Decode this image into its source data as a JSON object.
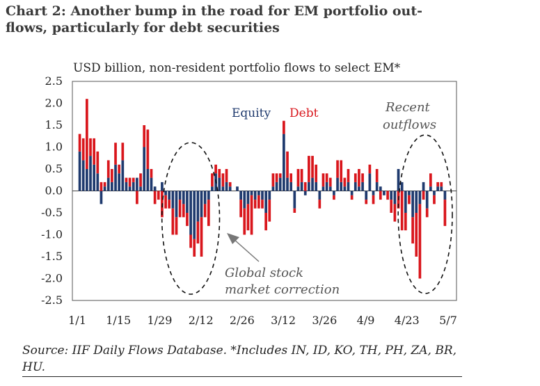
{
  "title": "Chart 2: Another bump in the road for EM portfolio out- flows, particularly for debt securities",
  "title_lines": [
    "Chart 2: Another bump in the road for EM portfolio out-",
    "flows, particularly for debt securities"
  ],
  "source": "Source: IIF Daily Flows Database. *Includes IN, ID, KO, TH, PH, ZA, BR, HU.",
  "colors": {
    "equity": "#1f3a6e",
    "debt": "#d9161c",
    "axis": "#333333",
    "annotation": "#555555"
  },
  "chart_data": {
    "type": "bar",
    "stacked": true,
    "subtitle": "USD billion, non-resident portfolio flows to select EM*",
    "ylim": [
      -2.5,
      2.5
    ],
    "y_ticks": [
      "2.5",
      "2.0",
      "1.5",
      "1.0",
      "0.5",
      "0.0",
      "-0.5",
      "-1.0",
      "-1.5",
      "-2.0",
      "-2.5"
    ],
    "x_ticks": [
      "1/1",
      "1/15",
      "1/29",
      "2/12",
      "2/26",
      "3/12",
      "3/26",
      "4/9",
      "4/23",
      "5/7"
    ],
    "legend": [
      "Equity",
      "Debt"
    ],
    "annotations": [
      "Recent",
      "outflows",
      "Global stock",
      "market correction"
    ],
    "series": [
      {
        "name": "Equity",
        "values": [
          0.9,
          0.7,
          0.5,
          0.8,
          0.6,
          0.4,
          -0.3,
          0.1,
          0.3,
          0.2,
          0.6,
          0.4,
          0.7,
          0.2,
          0.1,
          0.2,
          0.3,
          0.1,
          1.0,
          0.5,
          0.3,
          0.1,
          0.0,
          0.2,
          -0.1,
          -0.2,
          -0.4,
          -0.6,
          -0.2,
          -0.3,
          -0.5,
          -1.0,
          -1.1,
          -0.7,
          -0.6,
          -0.3,
          -0.2,
          0.1,
          0.4,
          0.3,
          0.1,
          0.2,
          0.1,
          0.0,
          0.1,
          -0.2,
          -0.4,
          -0.3,
          -0.1,
          -0.2,
          -0.1,
          -0.2,
          -0.5,
          -0.2,
          0.1,
          0.2,
          0.3,
          1.3,
          0.3,
          0.2,
          -0.4,
          0.1,
          0.2,
          -0.1,
          0.2,
          0.3,
          0.2,
          -0.2,
          0.1,
          0.2,
          0.1,
          -0.1,
          0.3,
          0.2,
          0.1,
          0.2,
          -0.1,
          0.2,
          0.1,
          0.2,
          -0.2,
          0.4,
          -0.1,
          0.2,
          0.1,
          -0.1,
          0.0,
          -0.2,
          -0.3,
          0.5,
          0.2,
          -0.5,
          -0.1,
          -0.6,
          -0.5,
          -0.3,
          0.2,
          -0.4,
          0.1,
          -0.1,
          0.1,
          0.1,
          -0.2
        ]
      },
      {
        "name": "Debt",
        "values": [
          0.4,
          0.5,
          1.6,
          0.4,
          0.6,
          0.5,
          0.2,
          0.1,
          0.4,
          0.3,
          0.5,
          0.2,
          0.4,
          0.1,
          0.2,
          0.1,
          -0.3,
          0.3,
          0.5,
          0.9,
          0.2,
          -0.3,
          -0.2,
          -0.6,
          -0.3,
          -0.2,
          -0.6,
          -0.4,
          -0.4,
          -0.3,
          -0.3,
          -0.3,
          -0.4,
          -0.5,
          -0.9,
          -0.3,
          -0.6,
          0.3,
          0.2,
          0.2,
          0.3,
          0.3,
          0.1,
          0.0,
          0.0,
          -0.4,
          -0.6,
          -0.6,
          -0.9,
          -0.2,
          -0.3,
          -0.2,
          -0.4,
          -0.5,
          0.3,
          0.2,
          0.1,
          0.3,
          0.6,
          0.2,
          -0.1,
          0.4,
          0.3,
          0.2,
          0.6,
          0.5,
          0.4,
          -0.2,
          0.3,
          0.2,
          0.2,
          -0.1,
          0.4,
          0.5,
          0.2,
          0.3,
          -0.1,
          0.2,
          0.4,
          0.2,
          -0.1,
          0.2,
          -0.2,
          0.3,
          -0.2,
          0.0,
          -0.2,
          -0.3,
          -0.4,
          -0.4,
          -0.9,
          -0.4,
          -0.2,
          -0.6,
          -1.0,
          -1.7,
          -0.2,
          -0.2,
          0.3,
          -0.2,
          0.1,
          0.1,
          -0.6
        ]
      }
    ],
    "circle_groups": [
      [
        25,
        37
      ],
      [
        91,
        102
      ]
    ]
  }
}
